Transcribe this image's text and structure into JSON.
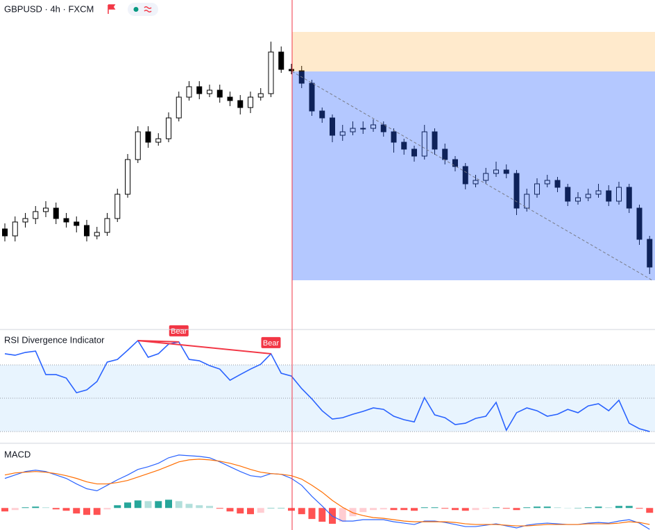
{
  "header": {
    "title": "GBPUSD · 4h · FXCM"
  },
  "chart_data": [
    {
      "type": "candlestick",
      "ylim": [
        1.2475,
        1.2945
      ],
      "up_color": "#ffffff",
      "down_color": "#000000",
      "candles": [
        [
          1.2615,
          1.2623,
          1.2597,
          1.2605
        ],
        [
          1.2605,
          1.2633,
          1.2597,
          1.2625
        ],
        [
          1.2625,
          1.2638,
          1.2617,
          1.263
        ],
        [
          1.263,
          1.2648,
          1.2622,
          1.264
        ],
        [
          1.264,
          1.2655,
          1.2632,
          1.2645
        ],
        [
          1.2645,
          1.2653,
          1.2622,
          1.263
        ],
        [
          1.263,
          1.2638,
          1.2617,
          1.2625
        ],
        [
          1.2625,
          1.2633,
          1.261,
          1.262
        ],
        [
          1.262,
          1.2628,
          1.2597,
          1.2605
        ],
        [
          1.2605,
          1.2618,
          1.26,
          1.261
        ],
        [
          1.261,
          1.2638,
          1.2605,
          1.263
        ],
        [
          1.263,
          1.2673,
          1.2625,
          1.2665
        ],
        [
          1.2665,
          1.2723,
          1.266,
          1.2715
        ],
        [
          1.2715,
          1.2763,
          1.271,
          1.2755
        ],
        [
          1.2755,
          1.2763,
          1.2732,
          1.274
        ],
        [
          1.274,
          1.2753,
          1.2735,
          1.2745
        ],
        [
          1.2745,
          1.2783,
          1.274,
          1.2775
        ],
        [
          1.2775,
          1.2813,
          1.277,
          1.2805
        ],
        [
          1.2805,
          1.2828,
          1.28,
          1.282
        ],
        [
          1.282,
          1.2828,
          1.2802,
          1.281
        ],
        [
          1.281,
          1.2823,
          1.2805,
          1.2815
        ],
        [
          1.2815,
          1.2823,
          1.2797,
          1.2805
        ],
        [
          1.2805,
          1.2813,
          1.2792,
          1.28
        ],
        [
          1.28,
          1.2808,
          1.278,
          1.279
        ],
        [
          1.279,
          1.2813,
          1.2782,
          1.2805
        ],
        [
          1.2805,
          1.2818,
          1.28,
          1.281
        ],
        [
          1.281,
          1.2885,
          1.2805,
          1.287
        ],
        [
          1.287,
          1.2878,
          1.284,
          1.2845
        ],
        [
          1.2845,
          1.2853,
          1.2838,
          1.2843
        ],
        [
          1.2843,
          1.285,
          1.2818,
          1.2825
        ],
        [
          1.2825,
          1.283,
          1.2778,
          1.2785
        ],
        [
          1.2785,
          1.279,
          1.2768,
          1.2775
        ],
        [
          1.2775,
          1.278,
          1.274,
          1.275
        ],
        [
          1.275,
          1.2765,
          1.2742,
          1.2755
        ],
        [
          1.2755,
          1.277,
          1.275,
          1.276
        ],
        [
          1.276,
          1.277,
          1.2752,
          1.276
        ],
        [
          1.276,
          1.2773,
          1.2755,
          1.2765
        ],
        [
          1.2765,
          1.277,
          1.2748,
          1.2755
        ],
        [
          1.2755,
          1.276,
          1.2725,
          1.274
        ],
        [
          1.274,
          1.2745,
          1.2722,
          1.273
        ],
        [
          1.273,
          1.2735,
          1.2712,
          1.272
        ],
        [
          1.272,
          1.2765,
          1.2715,
          1.2755
        ],
        [
          1.2755,
          1.276,
          1.2722,
          1.273
        ],
        [
          1.273,
          1.2738,
          1.2708,
          1.2715
        ],
        [
          1.2715,
          1.272,
          1.2698,
          1.2705
        ],
        [
          1.2705,
          1.271,
          1.2672,
          1.268
        ],
        [
          1.268,
          1.2693,
          1.2675,
          1.2685
        ],
        [
          1.2685,
          1.2703,
          1.268,
          1.2695
        ],
        [
          1.2695,
          1.2712,
          1.269,
          1.27
        ],
        [
          1.27,
          1.2708,
          1.2688,
          1.2695
        ],
        [
          1.2695,
          1.27,
          1.2635,
          1.2645
        ],
        [
          1.2645,
          1.2673,
          1.264,
          1.2665
        ],
        [
          1.2665,
          1.2688,
          1.266,
          1.268
        ],
        [
          1.268,
          1.2693,
          1.2675,
          1.2685
        ],
        [
          1.2685,
          1.269,
          1.2668,
          1.2675
        ],
        [
          1.2675,
          1.268,
          1.2648,
          1.2655
        ],
        [
          1.2655,
          1.2668,
          1.265,
          1.266
        ],
        [
          1.266,
          1.2673,
          1.2655,
          1.2665
        ],
        [
          1.2665,
          1.268,
          1.266,
          1.267
        ],
        [
          1.267,
          1.2678,
          1.2648,
          1.2655
        ],
        [
          1.2655,
          1.2683,
          1.265,
          1.2675
        ],
        [
          1.2675,
          1.268,
          1.2638,
          1.2645
        ],
        [
          1.2645,
          1.265,
          1.2592,
          1.26
        ],
        [
          1.26,
          1.2605,
          1.255,
          1.256
        ]
      ],
      "position": {
        "start_index": 28,
        "entry": 1.2842,
        "stop": 1.2899,
        "target": 1.2541,
        "profit_color": "#2962ff",
        "loss_color": "#ff9800"
      }
    },
    {
      "type": "line",
      "title": "RSI Divergence Indicator",
      "color": "#2962ff",
      "ylim": [
        24.2,
        90
      ],
      "levels": [
        70,
        50,
        30
      ],
      "values": [
        76.7,
        75.8,
        77.5,
        78.3,
        64.2,
        64.2,
        62.1,
        53.3,
        55,
        60,
        71.7,
        73.3,
        78.8,
        84.6,
        74.6,
        76.7,
        82.5,
        83.8,
        73.3,
        72.5,
        69.6,
        67.5,
        60.8,
        64.2,
        67.5,
        70.4,
        76.7,
        65,
        63.3,
        55.8,
        49.6,
        42.5,
        37.5,
        38.3,
        40.4,
        42.1,
        44.2,
        43.3,
        39.2,
        37.1,
        35.8,
        50.4,
        40,
        38.3,
        34.2,
        35,
        37.9,
        39.2,
        47.5,
        30.8,
        41.3,
        44.2,
        42.5,
        39.2,
        40.4,
        43.3,
        41.3,
        45.4,
        46.7,
        42.5,
        48.8,
        35,
        31.7,
        30
      ],
      "divergences": [
        {
          "label": "Bear",
          "from": 13,
          "to": 17,
          "color": "#f23645"
        },
        {
          "label": "Bear",
          "from": 13,
          "to": 26,
          "color": "#f23645"
        }
      ]
    },
    {
      "type": "macd",
      "title": "MACD",
      "ylim": [
        -0.0016,
        0.0044
      ],
      "series": [
        {
          "color": "#2962ff",
          "values": [
            0.00215,
            0.0024,
            0.00265,
            0.00275,
            0.00265,
            0.0024,
            0.00215,
            0.00175,
            0.0014,
            0.00125,
            0.00165,
            0.00205,
            0.0024,
            0.0028,
            0.003,
            0.00325,
            0.00365,
            0.00385,
            0.0038,
            0.00375,
            0.00365,
            0.00335,
            0.003,
            0.00265,
            0.00235,
            0.00225,
            0.0025,
            0.00245,
            0.00215,
            0.00165,
            0.00085,
            0.00015,
            -0.0006,
            -0.00095,
            -0.00095,
            -0.00085,
            -0.00085,
            -0.00085,
            -0.001,
            -0.0011,
            -0.0012,
            -0.00095,
            -0.00095,
            -0.00105,
            -0.0012,
            -0.00135,
            -0.00135,
            -0.00125,
            -0.00115,
            -0.0013,
            -0.00145,
            -0.00125,
            -0.00115,
            -0.0011,
            -0.00115,
            -0.0012,
            -0.0012,
            -0.0011,
            -0.00105,
            -0.0011,
            -0.00095,
            -0.00085,
            -0.0011,
            -0.00155
          ]
        },
        {
          "color": "#ff6d00",
          "values": [
            0.0024,
            0.00255,
            0.0026,
            0.00265,
            0.0026,
            0.0025,
            0.00235,
            0.00215,
            0.0019,
            0.00175,
            0.00175,
            0.00185,
            0.002,
            0.00225,
            0.0025,
            0.00275,
            0.00305,
            0.00335,
            0.0035,
            0.00355,
            0.0035,
            0.0034,
            0.00325,
            0.00305,
            0.0028,
            0.0026,
            0.0025,
            0.00245,
            0.00235,
            0.0021,
            0.00165,
            0.00115,
            0.00055,
            5e-05,
            -0.00035,
            -0.00055,
            -0.0007,
            -0.00075,
            -0.00085,
            -0.00095,
            -0.001,
            -0.001,
            -0.001,
            -0.001,
            -0.00105,
            -0.00115,
            -0.0012,
            -0.0012,
            -0.0012,
            -0.00125,
            -0.0013,
            -0.0013,
            -0.00125,
            -0.0012,
            -0.0012,
            -0.0012,
            -0.0012,
            -0.00115,
            -0.00115,
            -0.00115,
            -0.0011,
            -0.001,
            -0.00105,
            -0.0012
          ]
        }
      ],
      "histogram": [
        -0.00025,
        -0.00015,
        5e-05,
        0.0001,
        5e-05,
        -0.0001,
        -0.0002,
        -0.0004,
        -0.0005,
        -0.0005,
        -0.0001,
        0.0002,
        0.0004,
        0.00055,
        0.0005,
        0.0005,
        0.0006,
        0.0005,
        0.0003,
        0.0002,
        0.00015,
        -5e-05,
        -0.00025,
        -0.0004,
        -0.00045,
        -0.00035,
        0,
        0,
        -0.0002,
        -0.00045,
        -0.0008,
        -0.001,
        -0.00115,
        -0.001,
        -0.0006,
        -0.0003,
        -0.00015,
        -0.0001,
        -0.00015,
        -0.00015,
        -0.0002,
        5e-05,
        5e-05,
        -5e-05,
        -0.00015,
        -0.0002,
        -0.00015,
        -5e-05,
        5e-05,
        -5e-05,
        -0.00015,
        5e-05,
        0.0001,
        0.0001,
        5e-05,
        0,
        0,
        5e-05,
        0.0001,
        5e-05,
        0.00015,
        0.00015,
        -5e-05,
        -0.00035
      ],
      "histogram_colors": [
        "#26a69a",
        "#b2dfdb",
        "#ff5252",
        "#ffcdd2"
      ]
    }
  ]
}
